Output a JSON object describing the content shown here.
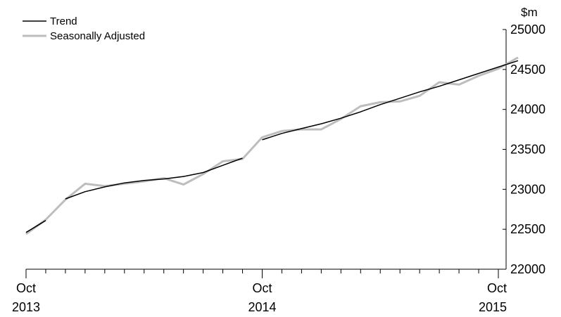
{
  "chart_data": {
    "type": "line",
    "y_unit": "$m",
    "ylim": [
      22000,
      25000
    ],
    "y_ticks": [
      22000,
      22500,
      23000,
      23500,
      24000,
      24500,
      25000
    ],
    "x_range": [
      "2013-10",
      "2015-10"
    ],
    "x_ticks": [
      {
        "month": "Oct",
        "year": "2013"
      },
      {
        "month": "Oct",
        "year": "2014"
      },
      {
        "month": "Oct",
        "year": "2015"
      }
    ],
    "grid": false,
    "legend_position": "top-left",
    "series": [
      {
        "name": "Trend",
        "color": "#000000",
        "segments": [
          [
            {
              "x": "2013-10",
              "y": 22460
            },
            {
              "x": "2013-11",
              "y": 22610
            }
          ],
          [
            {
              "x": "2013-12",
              "y": 22880
            },
            {
              "x": "2014-01",
              "y": 22970
            },
            {
              "x": "2014-02",
              "y": 23030
            },
            {
              "x": "2014-03",
              "y": 23080
            },
            {
              "x": "2014-04",
              "y": 23110
            },
            {
              "x": "2014-05",
              "y": 23130
            },
            {
              "x": "2014-06",
              "y": 23160
            },
            {
              "x": "2014-07",
              "y": 23210
            },
            {
              "x": "2014-08",
              "y": 23300
            },
            {
              "x": "2014-09",
              "y": 23390
            }
          ],
          [
            {
              "x": "2014-10",
              "y": 23620
            },
            {
              "x": "2014-11",
              "y": 23700
            },
            {
              "x": "2014-12",
              "y": 23760
            },
            {
              "x": "2015-01",
              "y": 23820
            },
            {
              "x": "2015-02",
              "y": 23890
            },
            {
              "x": "2015-03",
              "y": 23970
            },
            {
              "x": "2015-04",
              "y": 24060
            },
            {
              "x": "2015-05",
              "y": 24140
            },
            {
              "x": "2015-06",
              "y": 24220
            },
            {
              "x": "2015-07",
              "y": 24290
            },
            {
              "x": "2015-08",
              "y": 24370
            },
            {
              "x": "2015-09",
              "y": 24450
            },
            {
              "x": "2015-10",
              "y": 24530
            },
            {
              "x": "2015-11",
              "y": 24610
            }
          ]
        ]
      },
      {
        "name": "Seasonally Adjusted",
        "color": "#bdbdbd",
        "segments": [
          [
            {
              "x": "2013-10",
              "y": 22440
            },
            {
              "x": "2013-11",
              "y": 22620
            },
            {
              "x": "2013-12",
              "y": 22870
            },
            {
              "x": "2014-01",
              "y": 23070
            },
            {
              "x": "2014-02",
              "y": 23040
            },
            {
              "x": "2014-03",
              "y": 23070
            },
            {
              "x": "2014-04",
              "y": 23100
            },
            {
              "x": "2014-05",
              "y": 23140
            },
            {
              "x": "2014-06",
              "y": 23060
            },
            {
              "x": "2014-07",
              "y": 23190
            },
            {
              "x": "2014-08",
              "y": 23350
            },
            {
              "x": "2014-09",
              "y": 23380
            },
            {
              "x": "2014-10",
              "y": 23650
            },
            {
              "x": "2014-11",
              "y": 23730
            },
            {
              "x": "2014-12",
              "y": 23750
            },
            {
              "x": "2015-01",
              "y": 23750
            },
            {
              "x": "2015-02",
              "y": 23880
            },
            {
              "x": "2015-03",
              "y": 24040
            },
            {
              "x": "2015-04",
              "y": 24090
            },
            {
              "x": "2015-05",
              "y": 24100
            },
            {
              "x": "2015-06",
              "y": 24170
            },
            {
              "x": "2015-07",
              "y": 24340
            },
            {
              "x": "2015-08",
              "y": 24310
            },
            {
              "x": "2015-09",
              "y": 24420
            },
            {
              "x": "2015-10",
              "y": 24510
            },
            {
              "x": "2015-11",
              "y": 24650
            }
          ]
        ]
      }
    ]
  }
}
